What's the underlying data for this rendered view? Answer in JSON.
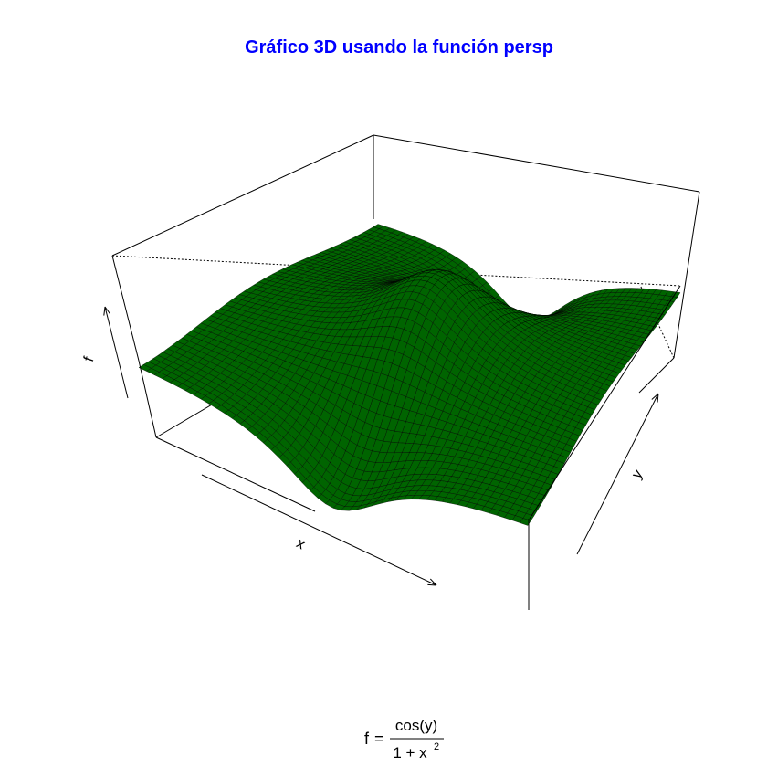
{
  "title": "Gráfico 3D usando la función persp",
  "formula": {
    "lhs": "f",
    "equals": "=",
    "numerator": "cos(y)",
    "denominator_base": "1 + x",
    "denominator_exponent": "2"
  },
  "colors": {
    "title": "#0000ff",
    "surface": "#006400",
    "mesh": "#000000",
    "box": "#000000",
    "background": "#ffffff"
  },
  "chart_data": {
    "type": "surface",
    "function": "cos(y) / (1 + x^2)",
    "xlabel": "x",
    "ylabel": "y",
    "zlabel": "f",
    "mesh_lines": 50,
    "box": true,
    "ticks_shown": false
  }
}
